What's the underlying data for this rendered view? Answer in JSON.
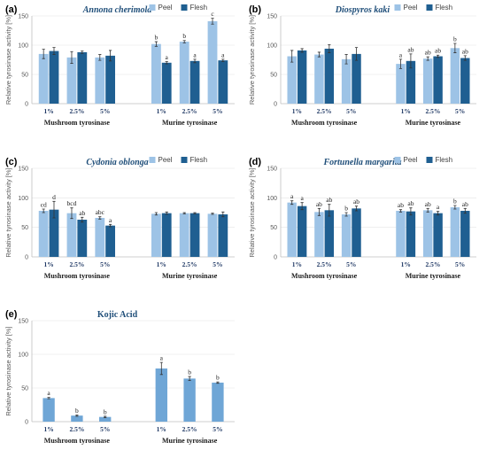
{
  "y_axis_label": "Relative tyrosinase activity [%]",
  "colors": {
    "peel": "#9dc3e6",
    "flesh": "#1f5f91",
    "single": "#6fa6d6"
  },
  "chart_data": [
    {
      "type": "bar",
      "panel": "(a)",
      "title": "Annona cherimola",
      "italic": true,
      "ylabel": "Relative tyrosinase activity [%]",
      "ylim": [
        0,
        150
      ],
      "yticks": [
        0,
        50,
        100,
        150
      ],
      "grid": true,
      "legend": "top-right",
      "categories": [
        "1%",
        "2.5%",
        "5%",
        "1%",
        "2.5%",
        "5%"
      ],
      "groups": [
        {
          "label": "Mushroom tyrosinase",
          "count": 3
        },
        {
          "label": "Murine tyrosinase",
          "count": 3
        }
      ],
      "series": [
        {
          "name": "Peel",
          "values": [
            85,
            79,
            79,
            102,
            106,
            141
          ],
          "errors": [
            8,
            10,
            5,
            4,
            2,
            5
          ],
          "labels": [
            "",
            "",
            "",
            "b",
            "b",
            "c"
          ]
        },
        {
          "name": "Flesh",
          "values": [
            90,
            88,
            82,
            70,
            73,
            74
          ],
          "errors": [
            6,
            2,
            9,
            2,
            3,
            2
          ],
          "labels": [
            "",
            "",
            "",
            "a",
            "a",
            "a"
          ]
        }
      ]
    },
    {
      "type": "bar",
      "panel": "(b)",
      "title": "Diospyros kaki",
      "italic": true,
      "ylabel": "Relative tyrosinase activity [%]",
      "ylim": [
        0,
        150
      ],
      "yticks": [
        0,
        50,
        100,
        150
      ],
      "grid": true,
      "legend": "top-right",
      "categories": [
        "1%",
        "2.5%",
        "5%",
        "1%",
        "2.5%",
        "5%"
      ],
      "groups": [
        {
          "label": "Mushroom tyrosinase",
          "count": 3
        },
        {
          "label": "Murine tyrosinase",
          "count": 3
        }
      ],
      "series": [
        {
          "name": "Peel",
          "values": [
            81,
            84,
            76,
            68,
            77,
            95
          ],
          "errors": [
            10,
            4,
            8,
            8,
            3,
            8
          ],
          "labels": [
            "",
            "",
            "",
            "a",
            "ab",
            "b"
          ]
        },
        {
          "name": "Flesh",
          "values": [
            91,
            94,
            85,
            73,
            81,
            78
          ],
          "errors": [
            3,
            7,
            11,
            12,
            2,
            4
          ],
          "labels": [
            "",
            "",
            "",
            "ab",
            "ab",
            "ab"
          ]
        }
      ]
    },
    {
      "type": "bar",
      "panel": "(c)",
      "title": "Cydonia oblonga",
      "italic": true,
      "ylabel": "Relative tyrosinase activity [%]",
      "ylim": [
        0,
        150
      ],
      "yticks": [
        0,
        50,
        100,
        150
      ],
      "grid": true,
      "legend": "top-right",
      "categories": [
        "1%",
        "2.5%",
        "5%",
        "1%",
        "2.5%",
        "5%"
      ],
      "groups": [
        {
          "label": "Mushroom tyrosinase",
          "count": 3
        },
        {
          "label": "Murine tyrosinase",
          "count": 3
        }
      ],
      "series": [
        {
          "name": "Peel",
          "values": [
            78,
            74,
            66,
            73,
            74,
            73
          ],
          "errors": [
            3,
            9,
            2,
            2,
            1,
            1
          ],
          "labels": [
            "cd",
            "bcd",
            "abc",
            "",
            "",
            ""
          ]
        },
        {
          "name": "Flesh",
          "values": [
            80,
            63,
            53,
            74,
            74,
            72
          ],
          "errors": [
            14,
            4,
            2,
            2,
            1,
            4
          ],
          "labels": [
            "d",
            "ab",
            "a",
            "",
            "",
            ""
          ]
        }
      ]
    },
    {
      "type": "bar",
      "panel": "(d)",
      "title": "Fortunella margarita",
      "italic": true,
      "ylabel": "Relative tyrosinase activity [%]",
      "ylim": [
        0,
        150
      ],
      "yticks": [
        0,
        50,
        100,
        150
      ],
      "grid": true,
      "legend": "top-right",
      "categories": [
        "1%",
        "2.5%",
        "5%",
        "1%",
        "2.5%",
        "5%"
      ],
      "groups": [
        {
          "label": "Mushroom tyrosinase",
          "count": 3
        },
        {
          "label": "Murine tyrosinase",
          "count": 3
        }
      ],
      "series": [
        {
          "name": "Peel",
          "values": [
            92,
            76,
            72,
            78,
            79,
            84
          ],
          "errors": [
            3,
            6,
            3,
            2,
            3,
            3
          ],
          "labels": [
            "a",
            "ab",
            "b",
            "ab",
            "ab",
            "b"
          ]
        },
        {
          "name": "Flesh",
          "values": [
            86,
            79,
            82,
            77,
            74,
            78
          ],
          "errors": [
            6,
            10,
            4,
            6,
            3,
            4
          ],
          "labels": [
            "a",
            "ab",
            "ab",
            "ab",
            "a",
            "ab"
          ]
        }
      ]
    },
    {
      "type": "bar",
      "panel": "(e)",
      "title": "Kojic Acid",
      "italic": false,
      "ylabel": "Relative tyrosinase activity [%]",
      "ylim": [
        0,
        150
      ],
      "yticks": [
        0,
        50,
        100,
        150
      ],
      "grid": true,
      "categories": [
        "1%",
        "2.5%",
        "5%",
        "1%",
        "2.5%",
        "5%"
      ],
      "groups": [
        {
          "label": "Mushroom tyrosinase",
          "count": 3
        },
        {
          "label": "Murine tyrosinase",
          "count": 3
        }
      ],
      "series": [
        {
          "values": [
            35,
            9,
            7,
            79,
            64,
            58
          ],
          "errors": [
            1,
            1,
            1,
            9,
            3,
            1
          ],
          "labels": [
            "a",
            "b",
            "b",
            "a",
            "b",
            "b"
          ]
        }
      ]
    }
  ]
}
